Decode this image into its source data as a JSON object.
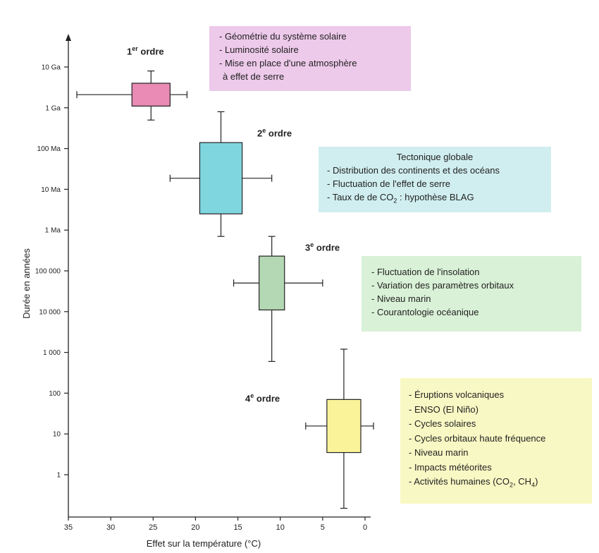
{
  "chart_data": {
    "type": "boxplot",
    "xlabel": "Effet sur la température (°C)",
    "ylabel": "Durée en années",
    "x_axis": {
      "reversed": true,
      "xlim": [
        35,
        0
      ],
      "ticks": [
        35,
        30,
        25,
        20,
        15,
        10,
        5,
        0
      ]
    },
    "y_axis": {
      "scale": "log",
      "ylim_years": [
        0.1,
        100000000000
      ],
      "tick_values": [
        1,
        10,
        100,
        1000,
        10000,
        100000,
        1000000,
        10000000,
        100000000,
        1000000000,
        10000000000
      ],
      "tick_labels": [
        "1",
        "10",
        "100",
        "1 000",
        "10 000",
        "100 000",
        "1 Ma",
        "10 Ma",
        "100 Ma",
        "1 Ga",
        "10 Ga"
      ]
    },
    "series": [
      {
        "order_num": "1",
        "order_sup": "er",
        "order_word": "ordre",
        "color": "#e98bb5",
        "temp_range": [
          34,
          21
        ],
        "temp_box": [
          27.5,
          23
        ],
        "duration_range_years": [
          500000000,
          8000000000
        ],
        "duration_box_years": [
          1100000000,
          4000000000
        ]
      },
      {
        "order_num": "2",
        "order_sup": "e",
        "order_word": "ordre",
        "color": "#7fd6df",
        "temp_range": [
          23,
          11
        ],
        "temp_box": [
          19.5,
          14.5
        ],
        "duration_range_years": [
          700000,
          800000000
        ],
        "duration_box_years": [
          2500000,
          140000000
        ]
      },
      {
        "order_num": "3",
        "order_sup": "e",
        "order_word": "ordre",
        "color": "#b4d8b3",
        "temp_range": [
          15.5,
          5
        ],
        "temp_box": [
          12.5,
          9.5
        ],
        "duration_range_years": [
          600,
          700000
        ],
        "duration_box_years": [
          11000,
          230000
        ]
      },
      {
        "order_num": "4",
        "order_sup": "e",
        "order_word": "ordre",
        "color": "#fbf39a",
        "temp_range": [
          7,
          -1
        ],
        "temp_box": [
          4.5,
          0.5
        ],
        "duration_range_years": [
          0.15,
          1200
        ],
        "duration_box_years": [
          3.5,
          70
        ]
      }
    ]
  },
  "info_boxes": [
    {
      "bg": "#edc9ea",
      "lines": [
        "- Géométrie du système solaire",
        "- Luminosité solaire",
        "- Mise en place d'une atmosphère",
        "à effet de serre"
      ]
    },
    {
      "bg": "#d0eef0",
      "title": "Tectonique globale",
      "lines": [
        "- Distribution des continents et des océans",
        "- Fluctuation de l'effet de serre"
      ],
      "blag_line": {
        "before": "- Taux de de CO",
        "sub": "2",
        "after": " : hypothèse BLAG"
      }
    },
    {
      "bg": "#d9f1d7",
      "lines": [
        "- Fluctuation de l'insolation",
        "- Variation des paramètres orbitaux",
        "- Niveau marin",
        "- Courantologie océanique"
      ]
    },
    {
      "bg": "#f8f8c4",
      "lines": [
        "- Éruptions volcaniques",
        "- ENSO (El Niño)",
        "- Cycles solaires",
        "- Cycles orbitaux haute fréquence",
        "- Niveau marin",
        "- Impacts météorites"
      ],
      "human_line": {
        "p1": "- Activités humaines (CO",
        "s1": "2",
        "p2": ", CH",
        "s2": "4",
        "p3": ")"
      }
    }
  ]
}
